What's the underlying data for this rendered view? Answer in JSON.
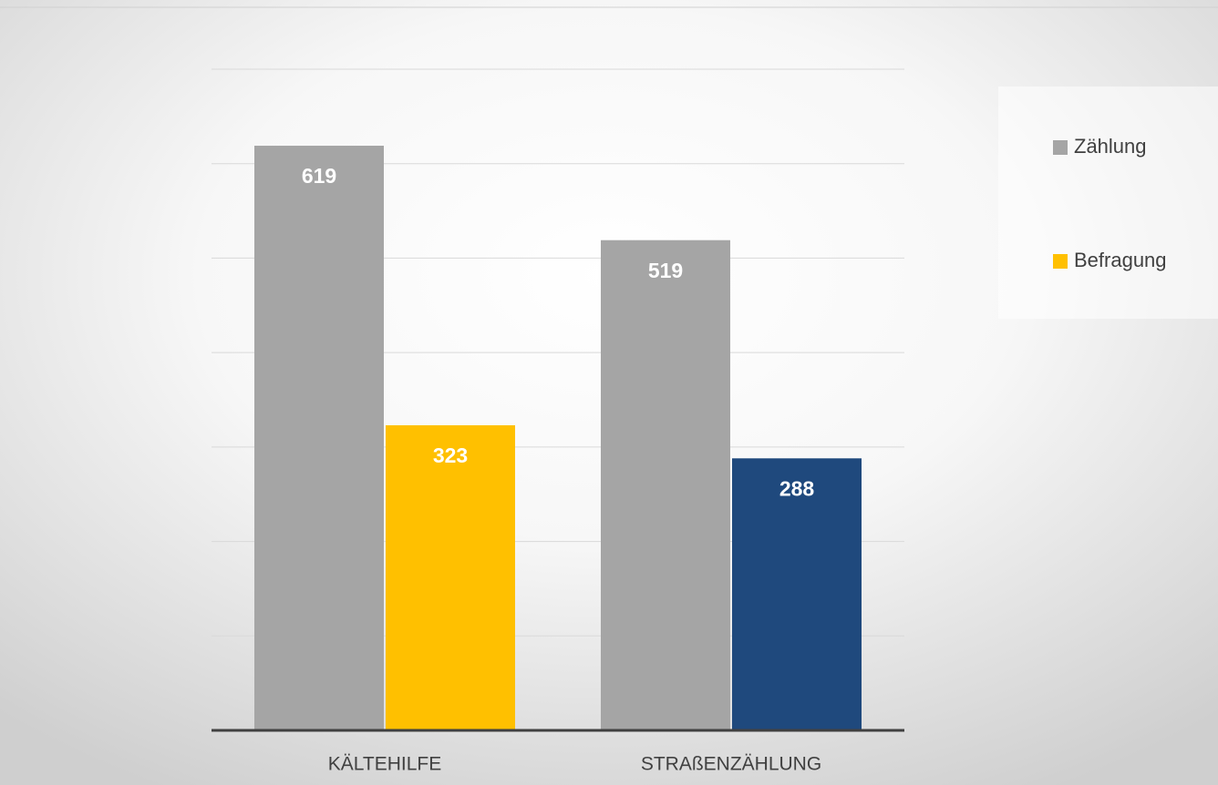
{
  "chart_data": {
    "type": "bar",
    "categories": [
      "KÄLTEHILFE",
      "STRAßENZÄHLUNG"
    ],
    "series": [
      {
        "name": "Zählung",
        "color": "#a5a5a5",
        "values": [
          619,
          519
        ]
      },
      {
        "name": "Befragung",
        "color": "#ffc000",
        "point_colors": [
          "#ffc000",
          "#1f497d"
        ],
        "values": [
          323,
          288
        ]
      }
    ],
    "ylim": [
      0,
      700
    ],
    "yticks": [
      0,
      100,
      200,
      300,
      400,
      500,
      600,
      700
    ],
    "grid": true,
    "legend": "right"
  }
}
